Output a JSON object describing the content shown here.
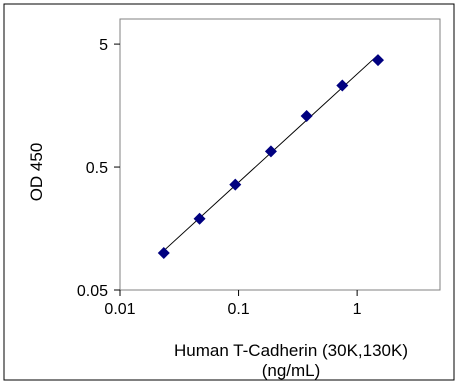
{
  "chart_data": {
    "type": "scatter",
    "title": "",
    "xlabel_line1": "Human T-Cadherin (30K,130K)",
    "xlabel_line2": "(ng/mL)",
    "ylabel": "OD 450",
    "x_scale": "log",
    "y_scale": "log",
    "xlim": [
      0.01,
      5
    ],
    "ylim": [
      0.05,
      8
    ],
    "x_ticks": [
      {
        "value": 0.01,
        "label": "0.01"
      },
      {
        "value": 0.1,
        "label": "0.1"
      },
      {
        "value": 1,
        "label": "1"
      }
    ],
    "y_ticks": [
      {
        "value": 0.05,
        "label": "0.05"
      },
      {
        "value": 0.5,
        "label": "0.5"
      },
      {
        "value": 5,
        "label": "5"
      }
    ],
    "grid": false,
    "legend": "none",
    "series": [
      {
        "x": [
          0.0234,
          0.0469,
          0.0938,
          0.1875,
          0.375,
          0.75,
          1.5
        ],
        "y": [
          0.1,
          0.19,
          0.36,
          0.67,
          1.3,
          2.3,
          3.7
        ]
      }
    ],
    "trendline": true,
    "marker_color": "#000080",
    "line_color": "#000000"
  }
}
